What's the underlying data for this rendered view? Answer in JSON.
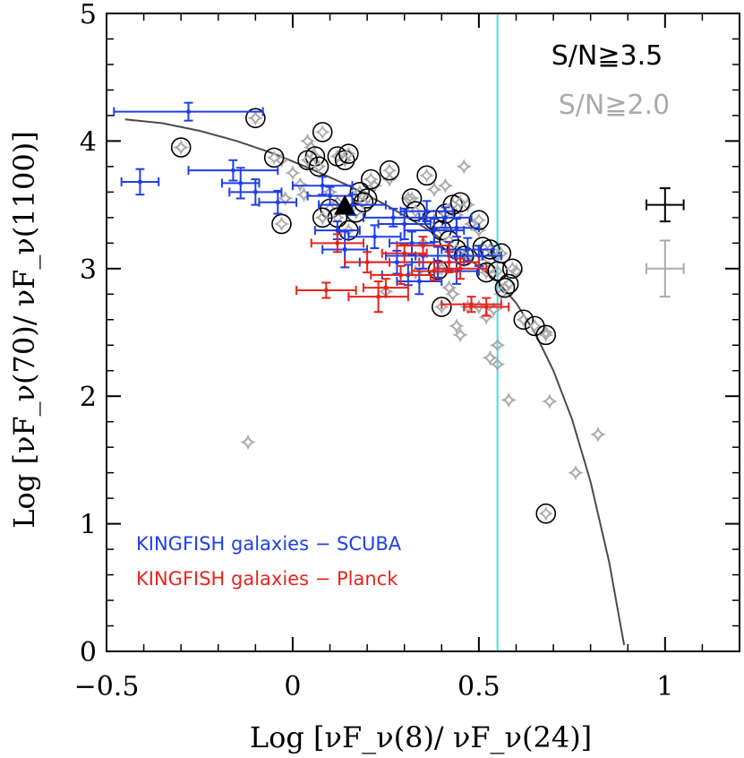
{
  "chart_data": {
    "type": "scatter",
    "title": "",
    "xlabel": "Log [νF_ν(8)/ νF_ν(24)]",
    "ylabel": "Log [νF_ν(70)/ νF_ν(1100)]",
    "xlim": [
      -0.5,
      1.2
    ],
    "ylim": [
      0,
      5
    ],
    "x_ticks": [
      -0.5,
      0,
      0.5,
      1
    ],
    "x_tick_labels": [
      "−0.5",
      "0",
      "0.5",
      "1"
    ],
    "y_ticks": [
      0,
      1,
      2,
      3,
      4,
      5
    ],
    "y_tick_labels": [
      "0",
      "1",
      "2",
      "3",
      "4",
      "5"
    ],
    "labels": {
      "sn_high": "S/N≧3.5",
      "sn_low": "S/N≧2.0",
      "legend_scuba": "KINGFISH galaxies − SCUBA",
      "legend_planck": "KINGFISH galaxies − Planck"
    },
    "colors": {
      "sn_high": "#000000",
      "sn_low": "#aaaaaa",
      "scuba": "#1f3fe6",
      "planck": "#e8231c",
      "curve": "#4a4a4a",
      "vline": "#3ee0e6"
    },
    "vertical_line_x": 0.55,
    "curve": {
      "x": [
        -0.45,
        -0.35,
        -0.25,
        -0.15,
        -0.05,
        0.05,
        0.15,
        0.25,
        0.35,
        0.45,
        0.55,
        0.6,
        0.65,
        0.7,
        0.75,
        0.8,
        0.85,
        0.89
      ],
      "y": [
        4.17,
        4.14,
        4.08,
        4.0,
        3.9,
        3.78,
        3.65,
        3.5,
        3.33,
        3.13,
        2.9,
        2.73,
        2.5,
        2.2,
        1.82,
        1.33,
        0.7,
        0.05
      ]
    },
    "series": [
      {
        "name": "S/N≧3.5",
        "marker": "open-circle",
        "points": [
          [
            -0.1,
            4.18
          ],
          [
            -0.3,
            3.95
          ],
          [
            -0.05,
            3.87
          ],
          [
            0.06,
            3.88
          ],
          [
            0.04,
            3.85
          ],
          [
            0.07,
            3.8
          ],
          [
            0.08,
            4.07
          ],
          [
            0.12,
            3.88
          ],
          [
            0.14,
            3.85
          ],
          [
            0.15,
            3.9
          ],
          [
            0.21,
            3.7
          ],
          [
            0.26,
            3.77
          ],
          [
            0.18,
            3.6
          ],
          [
            0.2,
            3.55
          ],
          [
            0.36,
            3.73
          ],
          [
            0.1,
            3.47
          ],
          [
            0.12,
            3.4
          ],
          [
            0.17,
            3.44
          ],
          [
            0.19,
            3.52
          ],
          [
            0.08,
            3.4
          ],
          [
            0.15,
            3.3
          ],
          [
            -0.03,
            3.35
          ],
          [
            0.32,
            3.55
          ],
          [
            0.33,
            3.45
          ],
          [
            0.38,
            3.38
          ],
          [
            0.41,
            3.43
          ],
          [
            0.43,
            3.5
          ],
          [
            0.45,
            3.52
          ],
          [
            0.5,
            3.38
          ],
          [
            0.4,
            3.3
          ],
          [
            0.42,
            3.22
          ],
          [
            0.44,
            3.15
          ],
          [
            0.46,
            3.1
          ],
          [
            0.51,
            3.17
          ],
          [
            0.53,
            3.15
          ],
          [
            0.56,
            3.12
          ],
          [
            0.52,
            2.97
          ],
          [
            0.55,
            2.98
          ],
          [
            0.59,
            3.0
          ],
          [
            0.58,
            2.88
          ],
          [
            0.57,
            2.85
          ],
          [
            0.39,
            2.99
          ],
          [
            0.4,
            2.7
          ],
          [
            0.62,
            2.6
          ],
          [
            0.65,
            2.55
          ],
          [
            0.68,
            2.48
          ],
          [
            0.68,
            1.08
          ]
        ]
      },
      {
        "name": "S/N≧2.0",
        "marker": "open-star",
        "points": [
          [
            -0.12,
            1.64
          ],
          [
            -0.3,
            3.95
          ],
          [
            -0.1,
            4.18
          ],
          [
            -0.03,
            3.85
          ],
          [
            0.04,
            4.0
          ],
          [
            0.05,
            3.95
          ],
          [
            0.0,
            3.75
          ],
          [
            0.03,
            3.58
          ],
          [
            0.1,
            3.6
          ],
          [
            0.22,
            3.65
          ],
          [
            0.26,
            3.7
          ],
          [
            0.31,
            3.55
          ],
          [
            0.38,
            3.62
          ],
          [
            0.41,
            3.65
          ],
          [
            0.46,
            3.8
          ],
          [
            0.47,
            3.5
          ],
          [
            0.44,
            3.42
          ],
          [
            0.5,
            3.3
          ],
          [
            0.35,
            3.2
          ],
          [
            0.4,
            3.0
          ],
          [
            0.43,
            2.8
          ],
          [
            0.44,
            2.55
          ],
          [
            0.45,
            2.48
          ],
          [
            0.47,
            2.7
          ],
          [
            0.5,
            2.7
          ],
          [
            0.52,
            2.62
          ],
          [
            0.53,
            2.3
          ],
          [
            0.54,
            2.68
          ],
          [
            0.55,
            2.4
          ],
          [
            0.55,
            2.25
          ],
          [
            0.56,
            2.8
          ],
          [
            0.58,
            1.97
          ],
          [
            0.6,
            2.98
          ],
          [
            0.55,
            3.1
          ],
          [
            0.53,
            3.0
          ],
          [
            0.42,
            2.85
          ],
          [
            0.47,
            3.08
          ],
          [
            0.69,
            1.96
          ],
          [
            0.68,
            2.5
          ],
          [
            0.76,
            1.4
          ],
          [
            0.82,
            1.7
          ],
          [
            0.62,
            2.6
          ],
          [
            0.51,
            3.05
          ],
          [
            0.33,
            2.97
          ],
          [
            0.25,
            2.82
          ],
          [
            0.08,
            3.4
          ],
          [
            0.12,
            3.52
          ],
          [
            -0.02,
            3.55
          ],
          [
            0.02,
            3.66
          ],
          [
            0.48,
            3.35
          ]
        ]
      },
      {
        "name": "KINGFISH galaxies − SCUBA",
        "marker": "errorbar-dot",
        "points": [
          {
            "x": -0.28,
            "y": 4.23,
            "xerr": 0.2,
            "yerr": 0.07
          },
          {
            "x": -0.41,
            "y": 3.68,
            "xerr": 0.05,
            "yerr": 0.1
          },
          {
            "x": -0.16,
            "y": 3.77,
            "xerr": 0.12,
            "yerr": 0.08
          },
          {
            "x": -0.14,
            "y": 3.67,
            "xerr": 0.05,
            "yerr": 0.12
          },
          {
            "x": -0.1,
            "y": 3.6,
            "xerr": 0.07,
            "yerr": 0.1
          },
          {
            "x": -0.04,
            "y": 3.52,
            "xerr": 0.05,
            "yerr": 0.09
          },
          {
            "x": 0.1,
            "y": 3.57,
            "xerr": 0.06,
            "yerr": 0.07
          },
          {
            "x": 0.08,
            "y": 3.65,
            "xerr": 0.08,
            "yerr": 0.07
          },
          {
            "x": 0.16,
            "y": 3.5,
            "xerr": 0.09,
            "yerr": 0.08
          },
          {
            "x": 0.12,
            "y": 3.3,
            "xerr": 0.06,
            "yerr": 0.07
          },
          {
            "x": 0.22,
            "y": 3.25,
            "xerr": 0.07,
            "yerr": 0.09
          },
          {
            "x": 0.14,
            "y": 3.15,
            "xerr": 0.06,
            "yerr": 0.14
          },
          {
            "x": 0.27,
            "y": 3.4,
            "xerr": 0.08,
            "yerr": 0.07
          },
          {
            "x": 0.3,
            "y": 3.35,
            "xerr": 0.07,
            "yerr": 0.12
          },
          {
            "x": 0.32,
            "y": 3.2,
            "xerr": 0.06,
            "yerr": 0.09
          },
          {
            "x": 0.36,
            "y": 3.45,
            "xerr": 0.07,
            "yerr": 0.08
          },
          {
            "x": 0.35,
            "y": 3.1,
            "xerr": 0.1,
            "yerr": 0.1
          },
          {
            "x": 0.38,
            "y": 3.3,
            "xerr": 0.08,
            "yerr": 0.09
          },
          {
            "x": 0.41,
            "y": 3.4,
            "xerr": 0.07,
            "yerr": 0.08
          },
          {
            "x": 0.44,
            "y": 3.32,
            "xerr": 0.06,
            "yerr": 0.07
          },
          {
            "x": 0.42,
            "y": 3.1,
            "xerr": 0.09,
            "yerr": 0.11
          },
          {
            "x": 0.47,
            "y": 3.15,
            "xerr": 0.07,
            "yerr": 0.09
          },
          {
            "x": 0.5,
            "y": 3.1,
            "xerr": 0.06,
            "yerr": 0.08
          },
          {
            "x": 0.31,
            "y": 2.95,
            "xerr": 0.07,
            "yerr": 0.08
          },
          {
            "x": 0.34,
            "y": 2.9,
            "xerr": 0.06,
            "yerr": 0.1
          },
          {
            "x": 0.28,
            "y": 3.05,
            "xerr": 0.1,
            "yerr": 0.09
          },
          {
            "x": 0.44,
            "y": 2.98,
            "xerr": 0.06,
            "yerr": 0.1
          },
          {
            "x": 0.39,
            "y": 3.05,
            "xerr": 0.07,
            "yerr": 0.12
          }
        ]
      },
      {
        "name": "KINGFISH galaxies − Planck",
        "marker": "errorbar-dot",
        "points": [
          {
            "x": 0.09,
            "y": 2.83,
            "xerr": 0.08,
            "yerr": 0.06
          },
          {
            "x": 0.12,
            "y": 3.2,
            "xerr": 0.07,
            "yerr": 0.07
          },
          {
            "x": 0.2,
            "y": 3.05,
            "xerr": 0.06,
            "yerr": 0.08
          },
          {
            "x": 0.23,
            "y": 2.78,
            "xerr": 0.08,
            "yerr": 0.12
          },
          {
            "x": 0.25,
            "y": 2.85,
            "xerr": 0.06,
            "yerr": 0.07
          },
          {
            "x": 0.3,
            "y": 3.12,
            "xerr": 0.06,
            "yerr": 0.07
          },
          {
            "x": 0.35,
            "y": 3.18,
            "xerr": 0.07,
            "yerr": 0.07
          },
          {
            "x": 0.42,
            "y": 3.05,
            "xerr": 0.08,
            "yerr": 0.08
          },
          {
            "x": 0.45,
            "y": 3.0,
            "xerr": 0.07,
            "yerr": 0.08
          },
          {
            "x": 0.48,
            "y": 2.72,
            "xerr": 0.08,
            "yerr": 0.06
          },
          {
            "x": 0.52,
            "y": 2.7,
            "xerr": 0.06,
            "yerr": 0.07
          },
          {
            "x": 0.38,
            "y": 2.98,
            "xerr": 0.06,
            "yerr": 0.07
          },
          {
            "x": 0.29,
            "y": 2.95,
            "xerr": 0.08,
            "yerr": 0.07
          }
        ]
      }
    ],
    "special_point": {
      "marker": "filled-triangle",
      "x": 0.14,
      "y": 3.48
    },
    "representative_errors": [
      {
        "series": "S/N≧3.5",
        "x": 1.0,
        "y": 3.5,
        "xerr": 0.05,
        "yerr": 0.13
      },
      {
        "series": "S/N≧2.0",
        "x": 1.0,
        "y": 3.0,
        "xerr": 0.05,
        "yerr": 0.22
      }
    ]
  }
}
